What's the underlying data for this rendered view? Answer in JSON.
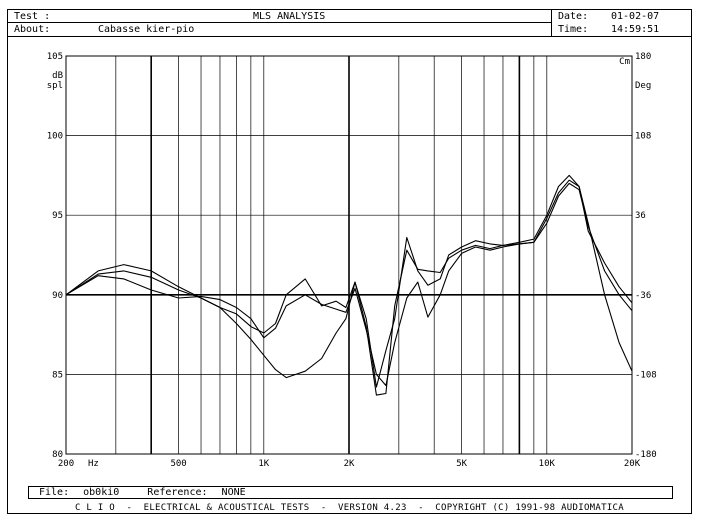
{
  "header": {
    "test_label": "Test :",
    "title": "MLS ANALYSIS",
    "about_label": "About:",
    "about_value": "Cabasse kier-pio",
    "date_label": "Date:",
    "date_value": "01-02-07",
    "time_label": "Time:",
    "time_value": "14:59:51"
  },
  "footer": {
    "file_label": "File:",
    "file_value": "ob0ki0",
    "reference_label": "Reference:",
    "reference_value": "NONE",
    "copyright": "C L I O  -  ELECTRICAL & ACOUSTICAL TESTS  -  VERSION 4.23  -  COPYRIGHT (C) 1991-98 AUDIOMATICA"
  },
  "chart_data": {
    "type": "line",
    "title": "MLS ANALYSIS",
    "x_scale": "log",
    "xlim": [
      200,
      20000
    ],
    "ylim": [
      80,
      105
    ],
    "y2lim": [
      -180,
      180
    ],
    "left_unit": [
      "dB",
      "spl"
    ],
    "right_unit": [
      "Cm",
      "Deg"
    ],
    "x_unit_label": "Hz",
    "x_ticks": [
      {
        "value": 200,
        "label": "200"
      },
      {
        "value": 500,
        "label": "500"
      },
      {
        "value": 1000,
        "label": "1K"
      },
      {
        "value": 2000,
        "label": "2K"
      },
      {
        "value": 5000,
        "label": "5K"
      },
      {
        "value": 10000,
        "label": "10K"
      },
      {
        "value": 20000,
        "label": "20K"
      }
    ],
    "y_ticks": [
      {
        "value": 105,
        "label": "105"
      },
      {
        "value": 100,
        "label": "100"
      },
      {
        "value": 95,
        "label": "95"
      },
      {
        "value": 90,
        "label": "90"
      },
      {
        "value": 85,
        "label": "85"
      },
      {
        "value": 80,
        "label": "80"
      }
    ],
    "y2_ticks": [
      {
        "value": 180,
        "label": "180"
      },
      {
        "value": 108,
        "label": "108"
      },
      {
        "value": 36,
        "label": "36"
      },
      {
        "value": -36,
        "label": "-36"
      },
      {
        "value": -108,
        "label": "-108"
      },
      {
        "value": -180,
        "label": "-180"
      }
    ],
    "grid": true,
    "series": [
      {
        "color": "#000000",
        "x": [
          200,
          260,
          320,
          400,
          500,
          600,
          700,
          800,
          900,
          1000,
          1100,
          1200,
          1400,
          1600,
          1800,
          1950,
          2100,
          2300,
          2500,
          2700,
          2900,
          3200,
          3500,
          3800,
          4200,
          4500,
          5000,
          5600,
          6300,
          7000,
          8000,
          9000,
          10000,
          11000,
          12000,
          13000,
          14000,
          16000,
          18000,
          20000
        ],
        "y": [
          90.0,
          91.3,
          91.5,
          91.1,
          90.3,
          89.8,
          89.2,
          88.2,
          87.2,
          86.2,
          85.3,
          84.8,
          85.2,
          86.0,
          87.6,
          88.5,
          90.8,
          88.0,
          83.7,
          83.8,
          89.3,
          92.8,
          91.6,
          91.5,
          91.4,
          92.3,
          92.8,
          93.1,
          92.9,
          93.1,
          93.2,
          93.3,
          94.8,
          96.4,
          97.2,
          96.8,
          94.5,
          90.0,
          87.0,
          85.2
        ]
      },
      {
        "color": "#000000",
        "x": [
          200,
          260,
          320,
          400,
          500,
          600,
          700,
          800,
          900,
          1000,
          1100,
          1200,
          1400,
          1600,
          1800,
          1950,
          2100,
          2300,
          2500,
          2700,
          2900,
          3200,
          3500,
          3800,
          4200,
          4500,
          5000,
          5600,
          6300,
          7000,
          8000,
          9000,
          10000,
          11000,
          12000,
          13000,
          14000,
          16000,
          18000,
          20000
        ],
        "y": [
          90.0,
          91.5,
          91.9,
          91.5,
          90.5,
          89.8,
          89.2,
          88.8,
          88.0,
          87.6,
          88.2,
          90.0,
          91.0,
          89.3,
          89.6,
          89.2,
          90.8,
          88.5,
          84.2,
          86.5,
          88.5,
          93.6,
          91.5,
          90.6,
          91.0,
          92.5,
          93.0,
          93.4,
          93.2,
          93.1,
          93.3,
          93.5,
          95.0,
          96.8,
          97.5,
          96.8,
          94.0,
          92.0,
          90.5,
          89.5
        ]
      },
      {
        "color": "#000000",
        "x": [
          200,
          260,
          320,
          400,
          500,
          600,
          700,
          800,
          900,
          1000,
          1100,
          1200,
          1400,
          1600,
          1800,
          1950,
          2100,
          2300,
          2500,
          2700,
          2900,
          3200,
          3500,
          3800,
          4200,
          4500,
          5000,
          5600,
          6300,
          7000,
          8000,
          9000,
          10000,
          11000,
          12000,
          13000,
          14000,
          16000,
          18000,
          20000
        ],
        "y": [
          90.0,
          91.2,
          91.0,
          90.3,
          89.8,
          89.9,
          89.7,
          89.2,
          88.5,
          87.3,
          87.9,
          89.3,
          90.0,
          89.4,
          89.1,
          88.9,
          90.4,
          87.8,
          85.0,
          84.3,
          87.0,
          89.8,
          90.8,
          88.6,
          90.0,
          91.5,
          92.6,
          93.0,
          92.8,
          93.0,
          93.2,
          93.3,
          94.5,
          96.2,
          97.0,
          96.6,
          94.3,
          91.5,
          90.0,
          89.0
        ]
      }
    ]
  }
}
